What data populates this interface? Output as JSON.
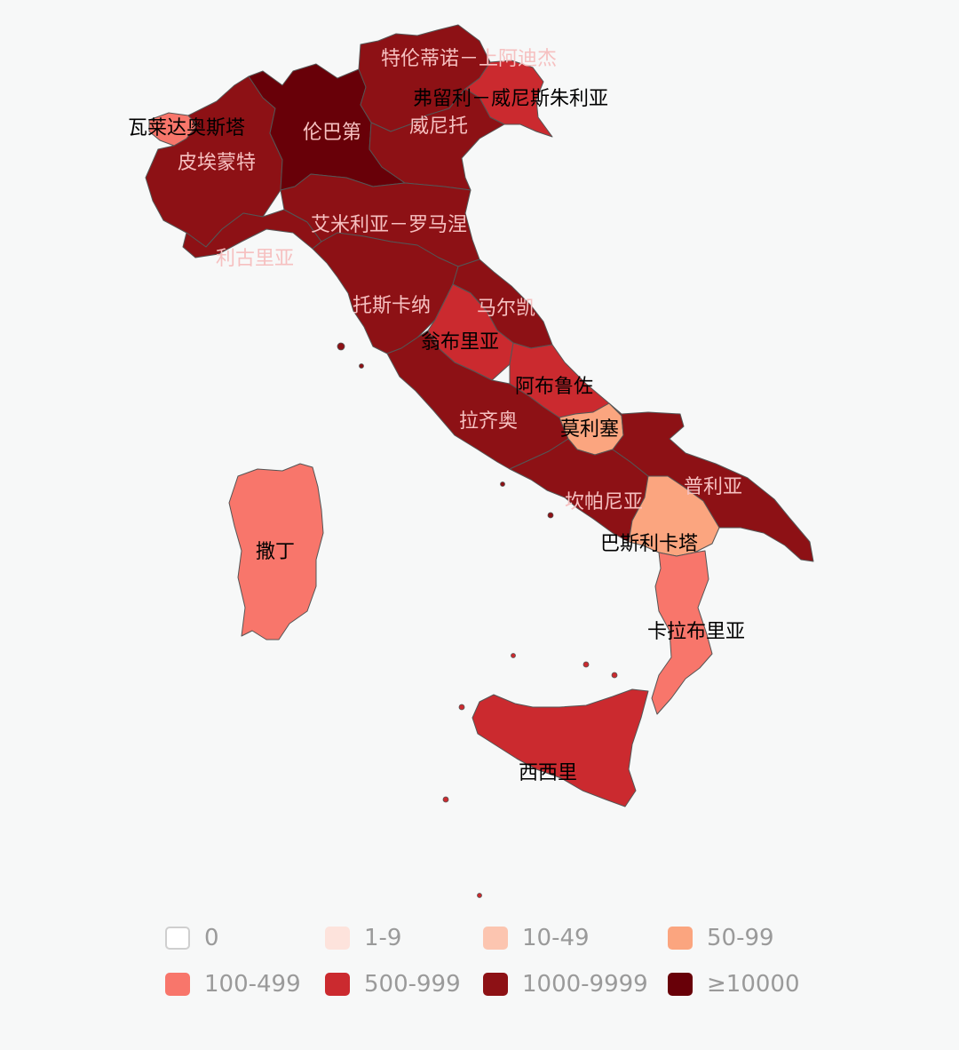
{
  "map": {
    "regions": [
      {
        "name": "瓦莱达奥斯塔",
        "bucket": 4,
        "label_color": "#000000"
      },
      {
        "name": "皮埃蒙特",
        "bucket": 6,
        "label_color": "#f6c0c0"
      },
      {
        "name": "伦巴第",
        "bucket": 7,
        "label_color": "#f6c0c0"
      },
      {
        "name": "特伦蒂诺－上阿迪杰",
        "bucket": 6,
        "label_color": "#f6c0c0"
      },
      {
        "name": "弗留利－威尼斯朱利亚",
        "bucket": 5,
        "label_color": "#000000"
      },
      {
        "name": "威尼托",
        "bucket": 6,
        "label_color": "#f6c0c0"
      },
      {
        "name": "利古里亚",
        "bucket": 6,
        "label_color": "#f6c0c0"
      },
      {
        "name": "艾米利亚－罗马涅",
        "bucket": 6,
        "label_color": "#f6c0c0"
      },
      {
        "name": "托斯卡纳",
        "bucket": 6,
        "label_color": "#f6c0c0"
      },
      {
        "name": "马尔凯",
        "bucket": 6,
        "label_color": "#f6c0c0"
      },
      {
        "name": "翁布里亚",
        "bucket": 5,
        "label_color": "#000000"
      },
      {
        "name": "拉齐奥",
        "bucket": 6,
        "label_color": "#f6c0c0"
      },
      {
        "name": "阿布鲁佐",
        "bucket": 5,
        "label_color": "#000000"
      },
      {
        "name": "莫利塞",
        "bucket": 3,
        "label_color": "#000000"
      },
      {
        "name": "坎帕尼亚",
        "bucket": 6,
        "label_color": "#f6c0c0"
      },
      {
        "name": "普利亚",
        "bucket": 6,
        "label_color": "#f6c0c0"
      },
      {
        "name": "巴斯利卡塔",
        "bucket": 3,
        "label_color": "#000000"
      },
      {
        "name": "卡拉布里亚",
        "bucket": 4,
        "label_color": "#000000"
      },
      {
        "name": "西西里",
        "bucket": 5,
        "label_color": "#000000"
      },
      {
        "name": "撒丁",
        "bucket": 4,
        "label_color": "#000000"
      }
    ]
  },
  "legend": {
    "items": [
      {
        "label": "0",
        "color": "#ffffff",
        "border": "#cfcfcf"
      },
      {
        "label": "1-9",
        "color": "#fde3dc",
        "border": "#fde3dc"
      },
      {
        "label": "10-49",
        "color": "#fcc5b0",
        "border": "#fcc5b0"
      },
      {
        "label": "50-99",
        "color": "#fba57f",
        "border": "#fba57f"
      },
      {
        "label": "100-499",
        "color": "#f8766b",
        "border": "#f8766b"
      },
      {
        "label": "500-999",
        "color": "#cb2a2f",
        "border": "#cb2a2f"
      },
      {
        "label": "1000-9999",
        "color": "#8d1115",
        "border": "#8d1115"
      },
      {
        "label": "≥10000",
        "color": "#680008",
        "border": "#680008"
      }
    ]
  }
}
